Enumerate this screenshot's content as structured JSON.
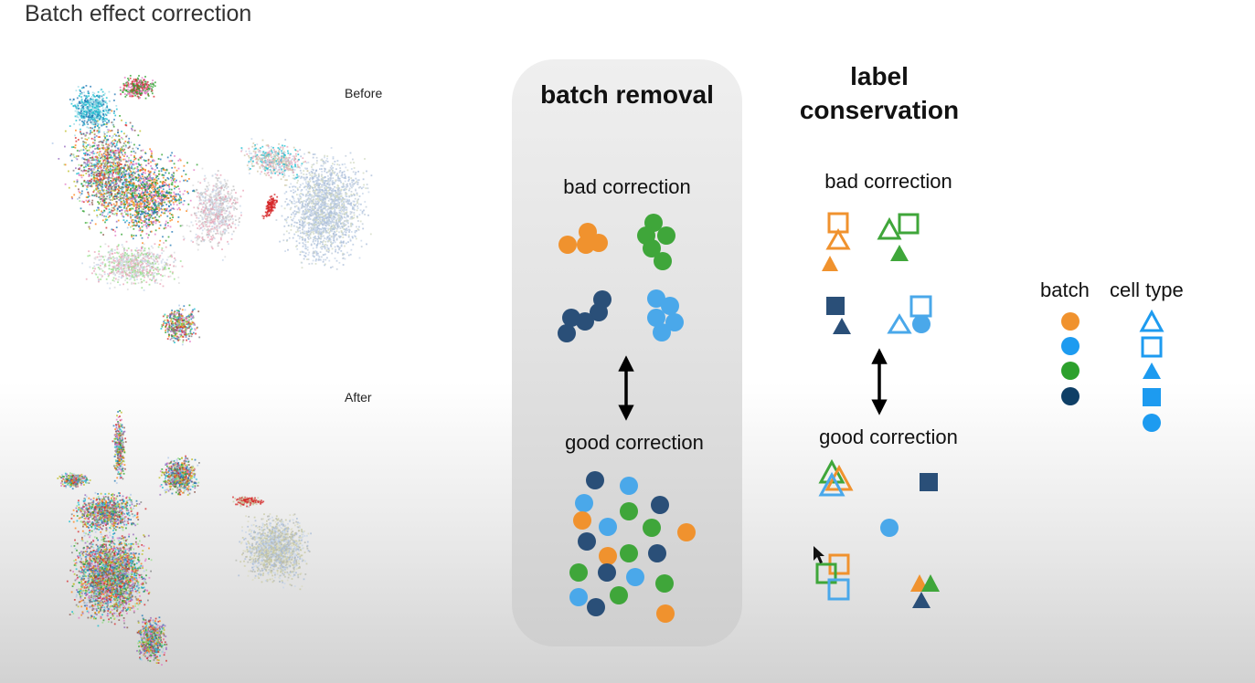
{
  "title": "Batch effect correction",
  "umap": {
    "before_label": "Before",
    "after_label": "After"
  },
  "batch_removal": {
    "heading": "batch removal",
    "bad_label": "bad correction",
    "good_label": "good correction"
  },
  "label_conservation": {
    "heading_line1": "label",
    "heading_line2": "conservation",
    "bad_label": "bad correction",
    "good_label": "good correction"
  },
  "legend": {
    "batch_header": "batch",
    "cell_type_header": "cell type",
    "batch_colors": [
      {
        "color": "#f0922e",
        "icon": "orange-circle"
      },
      {
        "color": "#1d9bf0",
        "icon": "light-blue-circle"
      },
      {
        "color": "#2ca02c",
        "icon": "green-circle"
      },
      {
        "color": "#0f3f66",
        "icon": "navy-circle"
      }
    ],
    "cell_types": [
      "triangle-outline-icon",
      "square-outline-icon",
      "triangle-filled-icon",
      "square-filled-icon",
      "circle-filled-icon"
    ]
  },
  "colors": {
    "orange": "#f0922e",
    "green": "#3fa63a",
    "navy": "#2a4f78",
    "light_blue": "#4aa8ea",
    "legend_blue": "#1d9bf0"
  }
}
